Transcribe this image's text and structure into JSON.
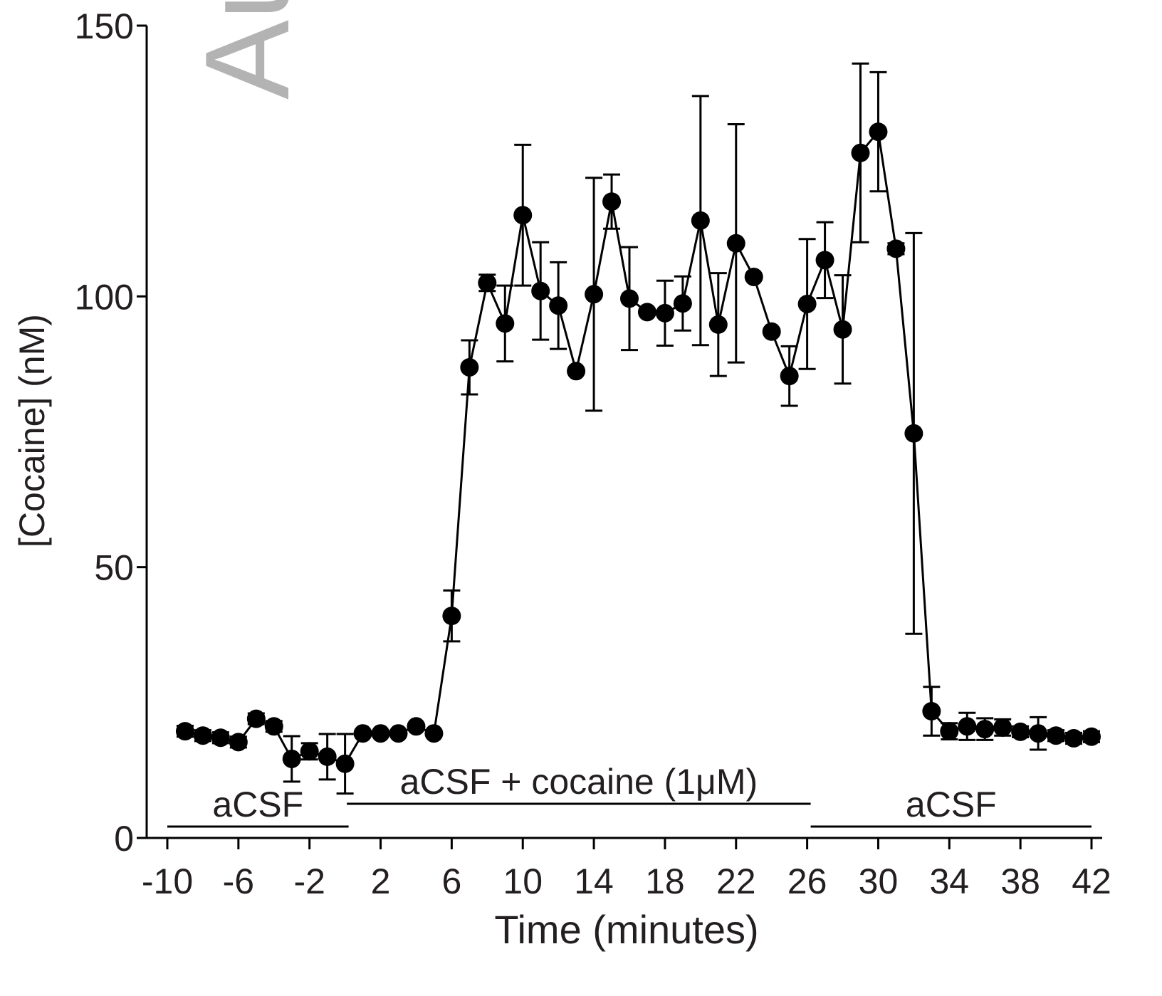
{
  "chart_data": {
    "type": "line",
    "watermark": "Author Manuscript",
    "ylabel": "[Cocaine] (nM)",
    "xlabel": "Time (minutes)",
    "xlim": [
      -10,
      42
    ],
    "xticks": [
      -10,
      -6,
      -2,
      2,
      6,
      10,
      14,
      18,
      22,
      26,
      30,
      34,
      38,
      42
    ],
    "ylim": [
      0,
      150
    ],
    "yticks": [
      0,
      50,
      100,
      150
    ],
    "x": [
      -9,
      -8,
      -7,
      -6,
      -5,
      -4,
      -3,
      -2,
      -1,
      0,
      1,
      2,
      3,
      4,
      5,
      6,
      7,
      8,
      9,
      10,
      11,
      12,
      13,
      14,
      15,
      16,
      17,
      18,
      19,
      20,
      21,
      22,
      23,
      24,
      25,
      26,
      27,
      28,
      29,
      30,
      31,
      32,
      33,
      34,
      35,
      36,
      37,
      38,
      39,
      40,
      41,
      42
    ],
    "series": [
      {
        "color": "#000000",
        "values": [
          19.7,
          18.9,
          18.5,
          17.7,
          22,
          20.6,
          14.6,
          16,
          15,
          13.7,
          19.3,
          19.3,
          19.3,
          20.6,
          19.3,
          41,
          86.9,
          102.5,
          95,
          115,
          101,
          98.3,
          86.2,
          100.4,
          117.5,
          99.6,
          97.1,
          96.9,
          98.7,
          114,
          94.8,
          109.8,
          103.6,
          93.5,
          85.3,
          98.6,
          106.7,
          93.9,
          126.5,
          130.4,
          108.8,
          74.7,
          23.4,
          19.7,
          20.6,
          20.1,
          20.4,
          19.6,
          19.3,
          18.9,
          18.4,
          18.7
        ],
        "errors": [
          1,
          1,
          1,
          1,
          1,
          1,
          4.2,
          1.5,
          4.2,
          5.5,
          0.5,
          0.5,
          0.5,
          0.5,
          0.5,
          4.7,
          5,
          1.5,
          7,
          13,
          9,
          8,
          0.5,
          21.5,
          5,
          9.5,
          0.5,
          6,
          5,
          23,
          9.5,
          22,
          0.5,
          0.5,
          5.5,
          12,
          7,
          10,
          16.5,
          11,
          1,
          37,
          4.5,
          1.5,
          2.5,
          2,
          1.5,
          1,
          3,
          1,
          1,
          1
        ]
      }
    ],
    "periods": [
      {
        "label": "aCSF",
        "start": -10,
        "end": 0.2
      },
      {
        "label": "aCSF + cocaine (1μM)",
        "start": 0.1,
        "end": 26.2
      },
      {
        "label": "aCSF",
        "start": 26.2,
        "end": 42
      }
    ]
  }
}
